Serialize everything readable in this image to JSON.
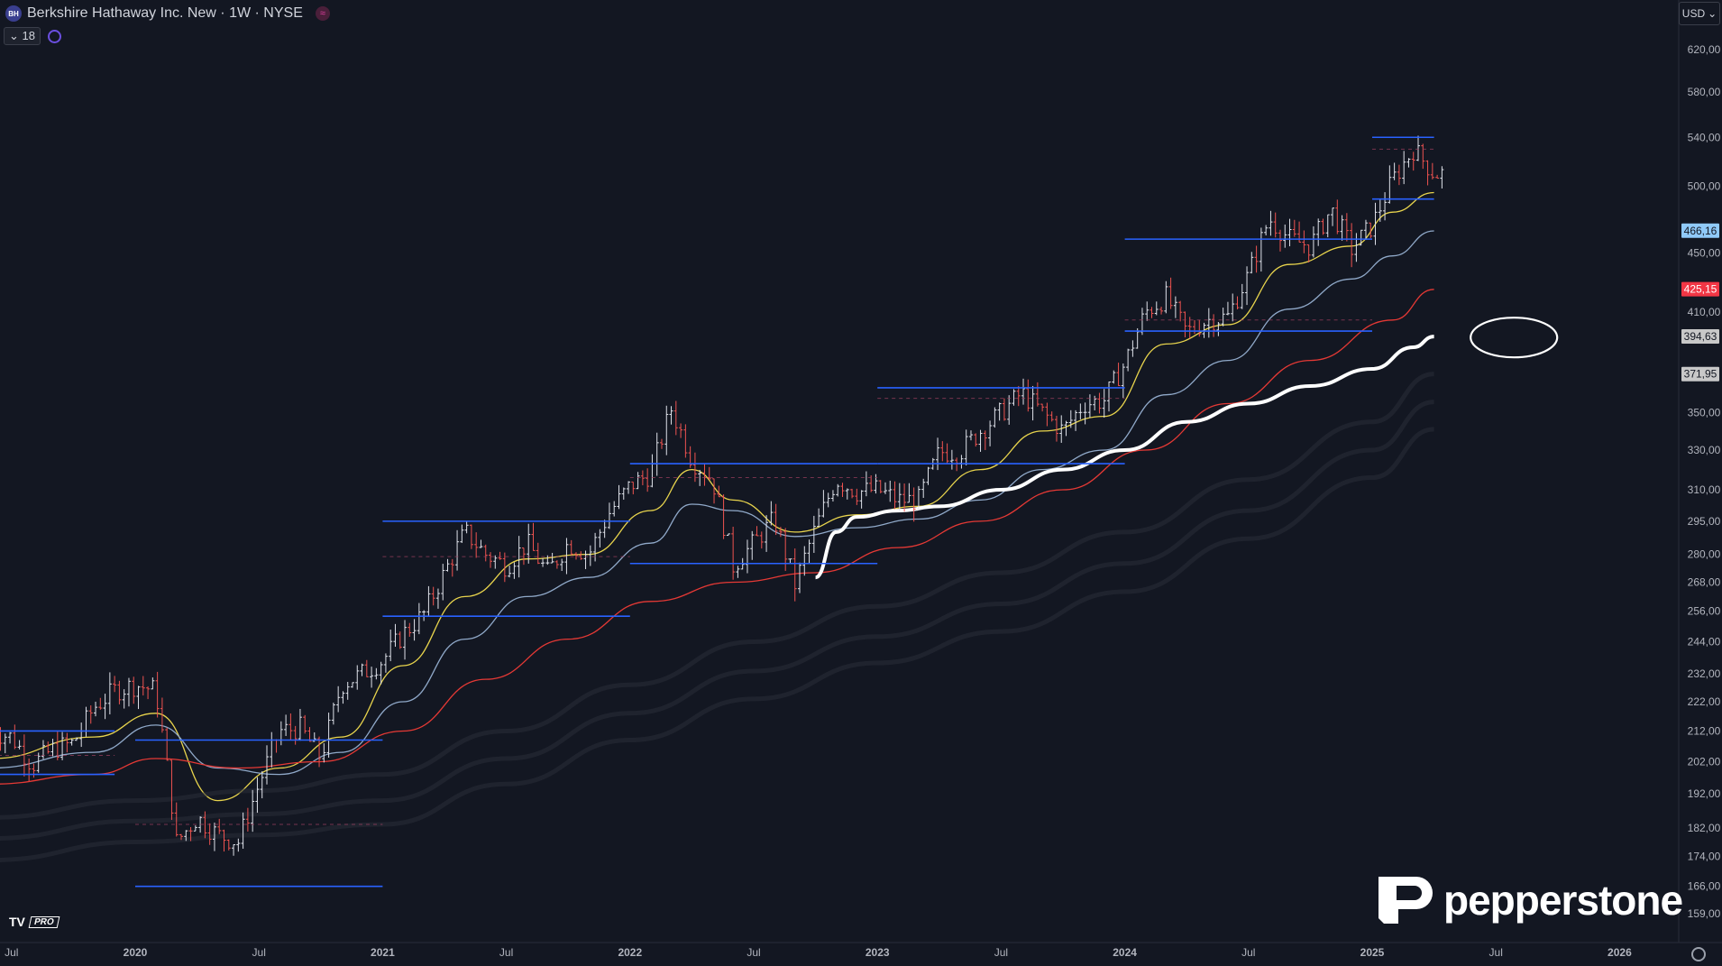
{
  "header": {
    "symbol_badge": "BH",
    "title": "Berkshire Hathaway Inc. New · 1W · NYSE",
    "compare_icon": "≈"
  },
  "indicators": {
    "count_label": "18"
  },
  "currency": {
    "label": "USD"
  },
  "watermark": {
    "brand": "pepperstone"
  },
  "tv": {
    "logo": "TV",
    "pro": "PRO"
  },
  "colors": {
    "background": "#131722",
    "grid": "#1e2230",
    "candle_up": "#e0e3eb",
    "candle_down": "#ef5350",
    "level_line": "#2962ff",
    "ma_yellow": "#e8d44d",
    "ma_light_blue": "#90a9c9",
    "ma_red": "#e53935",
    "ma_white": "#ffffff",
    "ma_gray": "#2a2e39"
  },
  "chart_data": {
    "type": "candlestick",
    "title": "Berkshire Hathaway Inc. New · 1W · NYSE",
    "x_axis_labels": [
      "Jul",
      "2020",
      "Jul",
      "2021",
      "Jul",
      "2022",
      "Jul",
      "2023",
      "Jul",
      "2024",
      "Jul",
      "2025",
      "Jul",
      "2026"
    ],
    "x_axis_label_dates": [
      "2019-07",
      "2020-01",
      "2020-07",
      "2021-01",
      "2021-07",
      "2022-01",
      "2022-07",
      "2023-01",
      "2023-07",
      "2024-01",
      "2024-07",
      "2025-01",
      "2025-07",
      "2026-01"
    ],
    "y_axis_labels": [
      "620,00",
      "580,00",
      "540,00",
      "500,00",
      "450,00",
      "410,00",
      "350,00",
      "330,00",
      "310,00",
      "295,00",
      "280,00",
      "268,00",
      "256,00",
      "244,00",
      "232,00",
      "222,00",
      "212,00",
      "202,00",
      "192,00",
      "182,00",
      "174,00",
      "166,00",
      "159,00"
    ],
    "y_axis_values": [
      620,
      580,
      540,
      500,
      450,
      410,
      350,
      330,
      310,
      295,
      280,
      268,
      256,
      244,
      232,
      222,
      212,
      202,
      192,
      182,
      174,
      166,
      159
    ],
    "scale": "log",
    "price_tags": [
      {
        "label": "466,16",
        "value": 466.16,
        "bg": "#90caf9",
        "fg": "#131722"
      },
      {
        "label": "425,15",
        "value": 425.15,
        "bg": "#f23645",
        "fg": "#ffffff"
      },
      {
        "label": "394,63",
        "value": 394.63,
        "bg": "#c8c8c8",
        "fg": "#131722"
      },
      {
        "label": "371,95",
        "value": 371.95,
        "bg": "#c8c8c8",
        "fg": "#131722"
      }
    ],
    "ohlc_weekly_close_path": [
      [
        "2019-06",
        212
      ],
      [
        "2019-07",
        210
      ],
      [
        "2019-08",
        201
      ],
      [
        "2019-09",
        206
      ],
      [
        "2019-10",
        208
      ],
      [
        "2019-11",
        220
      ],
      [
        "2019-12",
        226
      ],
      [
        "2020-01",
        228
      ],
      [
        "2020-02",
        226
      ],
      [
        "2020-03",
        178
      ],
      [
        "2020-04",
        185
      ],
      [
        "2020-05",
        180
      ],
      [
        "2020-06",
        178
      ],
      [
        "2020-07",
        195
      ],
      [
        "2020-08",
        212
      ],
      [
        "2020-09",
        213
      ],
      [
        "2020-10",
        203
      ],
      [
        "2020-11",
        228
      ],
      [
        "2020-12",
        232
      ],
      [
        "2021-01",
        237
      ],
      [
        "2021-02",
        247
      ],
      [
        "2021-03",
        255
      ],
      [
        "2021-04",
        272
      ],
      [
        "2021-05",
        290
      ],
      [
        "2021-06",
        280
      ],
      [
        "2021-07",
        275
      ],
      [
        "2021-08",
        285
      ],
      [
        "2021-09",
        272
      ],
      [
        "2021-10",
        285
      ],
      [
        "2021-11",
        280
      ],
      [
        "2021-12",
        299
      ],
      [
        "2022-01",
        312
      ],
      [
        "2022-02",
        318
      ],
      [
        "2022-03",
        352
      ],
      [
        "2022-04",
        325
      ],
      [
        "2022-05",
        315
      ],
      [
        "2022-06",
        275
      ],
      [
        "2022-07",
        285
      ],
      [
        "2022-08",
        296
      ],
      [
        "2022-09",
        267
      ],
      [
        "2022-10",
        292
      ],
      [
        "2022-11",
        315
      ],
      [
        "2022-12",
        309
      ],
      [
        "2023-01",
        310
      ],
      [
        "2023-02",
        305
      ],
      [
        "2023-03",
        305
      ],
      [
        "2023-04",
        329
      ],
      [
        "2023-05",
        329
      ],
      [
        "2023-06",
        340
      ],
      [
        "2023-07",
        350
      ],
      [
        "2023-08",
        361
      ],
      [
        "2023-09",
        350
      ],
      [
        "2023-10",
        340
      ],
      [
        "2023-11",
        355
      ],
      [
        "2023-12",
        357
      ],
      [
        "2024-01",
        378
      ],
      [
        "2024-02",
        410
      ],
      [
        "2024-03",
        420
      ],
      [
        "2024-04",
        397
      ],
      [
        "2024-05",
        405
      ],
      [
        "2024-06",
        407
      ],
      [
        "2024-07",
        435
      ],
      [
        "2024-08",
        475
      ],
      [
        "2024-09",
        460
      ],
      [
        "2024-10",
        455
      ],
      [
        "2024-11",
        482
      ],
      [
        "2024-12",
        453
      ],
      [
        "2025-01",
        470
      ],
      [
        "2025-02",
        505
      ],
      [
        "2025-03",
        530
      ],
      [
        "2025-04",
        510
      ]
    ],
    "levels": [
      {
        "value": 212,
        "from": "2019-06",
        "to": "2019-12"
      },
      {
        "value": 198,
        "from": "2019-06",
        "to": "2019-12"
      },
      {
        "value": 209,
        "from": "2020-01",
        "to": "2021-01"
      },
      {
        "value": 166,
        "from": "2020-01",
        "to": "2021-01"
      },
      {
        "value": 295,
        "from": "2021-01",
        "to": "2022-01"
      },
      {
        "value": 254,
        "from": "2021-01",
        "to": "2022-01"
      },
      {
        "value": 323,
        "from": "2022-01",
        "to": "2023-01"
      },
      {
        "value": 276,
        "from": "2022-01",
        "to": "2023-01"
      },
      {
        "value": 364,
        "from": "2023-01",
        "to": "2024-01"
      },
      {
        "value": 323,
        "from": "2023-01",
        "to": "2024-01"
      },
      {
        "value": 460,
        "from": "2024-01",
        "to": "2025-01"
      },
      {
        "value": 398,
        "from": "2024-01",
        "to": "2025-01"
      },
      {
        "value": 540,
        "from": "2025-01",
        "to": "2025-04"
      },
      {
        "value": 490,
        "from": "2025-01",
        "to": "2025-04"
      }
    ],
    "dashed_levels": [
      {
        "value": 204,
        "from": "2019-06",
        "to": "2019-12"
      },
      {
        "value": 183,
        "from": "2020-01",
        "to": "2021-01"
      },
      {
        "value": 279,
        "from": "2021-01",
        "to": "2022-01"
      },
      {
        "value": 316,
        "from": "2022-01",
        "to": "2023-01"
      },
      {
        "value": 358,
        "from": "2023-01",
        "to": "2024-01"
      },
      {
        "value": 405,
        "from": "2024-01",
        "to": "2025-01"
      },
      {
        "value": 530,
        "from": "2025-01",
        "to": "2025-04"
      }
    ],
    "moving_averages": [
      {
        "color": "ma_yellow",
        "points": [
          [
            "2019-06",
            203
          ],
          [
            "2019-11",
            210
          ],
          [
            "2020-02",
            218
          ],
          [
            "2020-05",
            190
          ],
          [
            "2020-08",
            200
          ],
          [
            "2020-11",
            210
          ],
          [
            "2021-02",
            235
          ],
          [
            "2021-05",
            262
          ],
          [
            "2021-08",
            278
          ],
          [
            "2021-11",
            280
          ],
          [
            "2022-02",
            300
          ],
          [
            "2022-04",
            320
          ],
          [
            "2022-06",
            305
          ],
          [
            "2022-09",
            290
          ],
          [
            "2022-12",
            298
          ],
          [
            "2023-03",
            302
          ],
          [
            "2023-06",
            320
          ],
          [
            "2023-09",
            340
          ],
          [
            "2023-12",
            348
          ],
          [
            "2024-03",
            390
          ],
          [
            "2024-06",
            402
          ],
          [
            "2024-09",
            442
          ],
          [
            "2024-12",
            455
          ],
          [
            "2025-02",
            480
          ],
          [
            "2025-04",
            495
          ]
        ]
      },
      {
        "color": "ma_light_blue",
        "points": [
          [
            "2019-06",
            200
          ],
          [
            "2019-11",
            205
          ],
          [
            "2020-02",
            214
          ],
          [
            "2020-05",
            200
          ],
          [
            "2020-08",
            198
          ],
          [
            "2020-11",
            205
          ],
          [
            "2021-02",
            222
          ],
          [
            "2021-05",
            245
          ],
          [
            "2021-08",
            262
          ],
          [
            "2021-11",
            270
          ],
          [
            "2022-02",
            285
          ],
          [
            "2022-04",
            303
          ],
          [
            "2022-06",
            300
          ],
          [
            "2022-09",
            288
          ],
          [
            "2022-12",
            292
          ],
          [
            "2023-03",
            296
          ],
          [
            "2023-06",
            305
          ],
          [
            "2023-09",
            320
          ],
          [
            "2023-12",
            330
          ],
          [
            "2024-03",
            360
          ],
          [
            "2024-06",
            380
          ],
          [
            "2024-09",
            412
          ],
          [
            "2024-12",
            432
          ],
          [
            "2025-02",
            448
          ],
          [
            "2025-04",
            466
          ]
        ]
      },
      {
        "color": "ma_red",
        "points": [
          [
            "2019-06",
            195
          ],
          [
            "2019-11",
            198
          ],
          [
            "2020-02",
            203
          ],
          [
            "2020-06",
            200
          ],
          [
            "2020-10",
            202
          ],
          [
            "2021-02",
            212
          ],
          [
            "2021-06",
            230
          ],
          [
            "2021-10",
            245
          ],
          [
            "2022-02",
            260
          ],
          [
            "2022-06",
            268
          ],
          [
            "2022-10",
            272
          ],
          [
            "2023-02",
            283
          ],
          [
            "2023-06",
            295
          ],
          [
            "2023-10",
            310
          ],
          [
            "2024-02",
            330
          ],
          [
            "2024-06",
            355
          ],
          [
            "2024-10",
            380
          ],
          [
            "2025-02",
            405
          ],
          [
            "2025-04",
            425
          ]
        ]
      },
      {
        "color": "ma_white",
        "bold": true,
        "points": [
          [
            "2022-10",
            270
          ],
          [
            "2022-11",
            290
          ],
          [
            "2022-12",
            297
          ],
          [
            "2023-02",
            300
          ],
          [
            "2023-04",
            302
          ],
          [
            "2023-07",
            310
          ],
          [
            "2023-10",
            320
          ],
          [
            "2024-01",
            330
          ],
          [
            "2024-04",
            345
          ],
          [
            "2024-07",
            355
          ],
          [
            "2024-10",
            365
          ],
          [
            "2025-01",
            375
          ],
          [
            "2025-03",
            388
          ],
          [
            "2025-04",
            394.6
          ]
        ]
      },
      {
        "color": "ma_gray",
        "points": [
          [
            "2019-06",
            185
          ],
          [
            "2020-01",
            190
          ],
          [
            "2020-07",
            193
          ],
          [
            "2021-01",
            198
          ],
          [
            "2021-07",
            212
          ],
          [
            "2022-01",
            228
          ],
          [
            "2022-07",
            244
          ],
          [
            "2023-01",
            258
          ],
          [
            "2023-07",
            272
          ],
          [
            "2024-01",
            290
          ],
          [
            "2024-07",
            315
          ],
          [
            "2025-01",
            345
          ],
          [
            "2025-04",
            372
          ]
        ]
      },
      {
        "color": "ma_gray",
        "points": [
          [
            "2019-06",
            179
          ],
          [
            "2020-01",
            184
          ],
          [
            "2020-07",
            186
          ],
          [
            "2021-01",
            190
          ],
          [
            "2021-07",
            203
          ],
          [
            "2022-01",
            218
          ],
          [
            "2022-07",
            233
          ],
          [
            "2023-01",
            246
          ],
          [
            "2023-07",
            259
          ],
          [
            "2024-01",
            276
          ],
          [
            "2024-07",
            300
          ],
          [
            "2025-01",
            330
          ],
          [
            "2025-04",
            356
          ]
        ]
      },
      {
        "color": "ma_gray",
        "points": [
          [
            "2019-06",
            173
          ],
          [
            "2020-01",
            178
          ],
          [
            "2020-07",
            180
          ],
          [
            "2021-01",
            183
          ],
          [
            "2021-07",
            195
          ],
          [
            "2022-01",
            209
          ],
          [
            "2022-07",
            223
          ],
          [
            "2023-01",
            236
          ],
          [
            "2023-07",
            248
          ],
          [
            "2024-01",
            264
          ],
          [
            "2024-07",
            287
          ],
          [
            "2025-01",
            316
          ],
          [
            "2025-04",
            341
          ]
        ]
      }
    ],
    "annotation_ellipse": {
      "at_date": "2025-07",
      "value": 394
    }
  }
}
